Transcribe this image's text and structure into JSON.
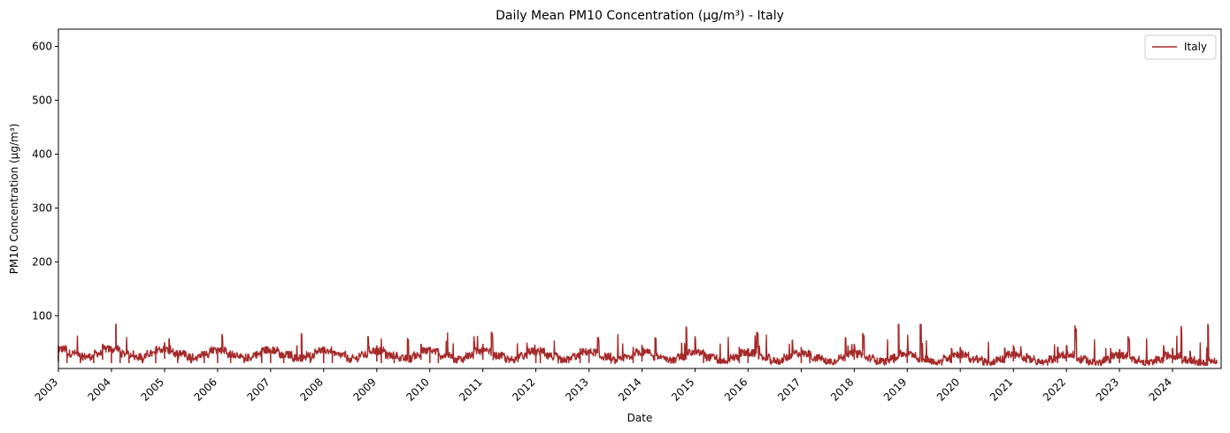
{
  "chart_data": {
    "type": "line",
    "title": "Daily Mean PM10 Concentration (µg/m³) - Italy",
    "xlabel": "Date",
    "ylabel": "PM10 Concentration (µg/m³)",
    "x_tick_labels": [
      "2003",
      "2004",
      "2005",
      "2006",
      "2007",
      "2008",
      "2009",
      "2010",
      "2011",
      "2012",
      "2013",
      "2014",
      "2015",
      "2016",
      "2017",
      "2018",
      "2019",
      "2020",
      "2021",
      "2022",
      "2023",
      "2024"
    ],
    "y_ticks": [
      100,
      200,
      300,
      400,
      500,
      600
    ],
    "xlim": [
      "2003-01-01",
      "2024-12-01"
    ],
    "ylim": [
      2,
      632
    ],
    "grid": false,
    "legend_position": "top-right",
    "line_color": "#a52a2a",
    "series": [
      {
        "name": "Italy",
        "x": [
          "2003-01",
          "2003-03",
          "2003-06",
          "2003-09",
          "2003-11",
          "2004-01",
          "2004-02",
          "2004-03",
          "2004-05",
          "2004-08",
          "2004-11",
          "2005-01",
          "2005-02",
          "2005-04",
          "2005-07",
          "2005-10",
          "2006-01",
          "2006-02",
          "2006-04",
          "2006-07",
          "2006-11",
          "2007-01",
          "2007-04",
          "2007-07",
          "2007-08",
          "2007-10",
          "2008-01",
          "2008-03",
          "2008-07",
          "2008-11",
          "2009-01",
          "2009-02",
          "2009-05",
          "2009-08",
          "2009-11",
          "2010-01",
          "2010-03",
          "2010-07",
          "2010-11",
          "2011-01",
          "2011-03",
          "2011-07",
          "2011-11",
          "2012-01",
          "2012-02",
          "2012-07",
          "2012-11",
          "2013-01",
          "2013-03",
          "2013-07",
          "2013-11",
          "2014-01",
          "2014-04",
          "2014-07",
          "2014-10",
          "2014-11",
          "2015-01",
          "2015-03",
          "2015-07",
          "2015-11",
          "2016-01",
          "2016-03",
          "2016-07",
          "2016-11",
          "2017-01",
          "2017-03",
          "2017-07",
          "2017-11",
          "2018-01",
          "2018-03",
          "2018-07",
          "2018-10",
          "2018-11",
          "2019-01",
          "2019-04",
          "2019-07",
          "2019-11",
          "2020-01",
          "2020-04",
          "2020-07",
          "2020-11",
          "2021-01",
          "2021-04",
          "2021-07",
          "2021-11",
          "2022-01",
          "2022-03",
          "2022-07",
          "2022-11",
          "2023-01",
          "2023-03",
          "2023-07",
          "2023-11",
          "2024-01",
          "2024-03",
          "2024-05",
          "2024-07",
          "2024-09",
          "2024-11"
        ],
        "values": [
          45,
          30,
          22,
          28,
          48,
          40,
          85,
          35,
          25,
          22,
          42,
          50,
          58,
          30,
          22,
          35,
          40,
          66,
          30,
          22,
          40,
          38,
          30,
          45,
          68,
          25,
          42,
          35,
          22,
          62,
          45,
          38,
          25,
          58,
          48,
          42,
          35,
          22,
          62,
          48,
          70,
          22,
          50,
          35,
          42,
          22,
          40,
          38,
          60,
          20,
          42,
          45,
          60,
          18,
          50,
          80,
          62,
          35,
          20,
          42,
          40,
          70,
          22,
          55,
          42,
          35,
          20,
          60,
          48,
          68,
          22,
          30,
          85,
          38,
          85,
          20,
          40,
          42,
          20,
          18,
          40,
          45,
          30,
          18,
          42,
          45,
          82,
          20,
          40,
          38,
          62,
          18,
          45,
          40,
          80,
          35,
          20,
          85,
          15
        ]
      }
    ]
  }
}
